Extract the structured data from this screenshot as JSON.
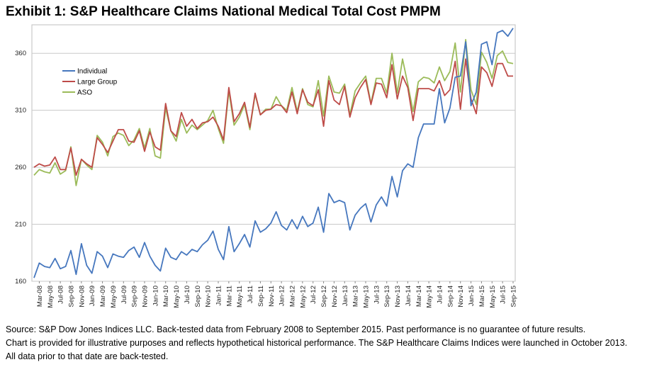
{
  "title": "Exhibit 1: S&P Healthcare Claims National Medical Total Cost PMPM",
  "footnotes": [
    "Source: S&P Dow Jones Indices LLC.  Back-tested data from February 2008 to September 2015.  Past performance is no guarantee of future results.",
    "Chart is provided for illustrative purposes and reflects hypothetical historical performance.  The S&P Healthcare Claims Indices were launched in October 2013.",
    "All data prior to that date are back-tested."
  ],
  "chart_data": {
    "type": "line",
    "title": "",
    "xlabel": "",
    "ylabel": "",
    "ylim": [
      160,
      385
    ],
    "yticks": [
      160,
      210,
      260,
      310,
      360
    ],
    "grid": "horizontal",
    "legend_position": "upper-left",
    "x_tick_labels": [
      "Mar-08",
      "May-08",
      "Jul-08",
      "Sep-08",
      "Nov-08",
      "Jan-09",
      "Mar-09",
      "May-09",
      "Jul-09",
      "Sep-09",
      "Nov-09",
      "Jan-10",
      "Mar-10",
      "May-10",
      "Jul-10",
      "Sep-10",
      "Nov-10",
      "Jan-11",
      "Mar-11",
      "May-11",
      "Jul-11",
      "Sep-11",
      "Nov-11",
      "Jan-12",
      "Mar-12",
      "May-12",
      "Jul-12",
      "Sep-12",
      "Nov-12",
      "Jan-13",
      "Mar-13",
      "May-13",
      "Jul-13",
      "Sep-13",
      "Nov-13",
      "Jan-14",
      "Mar-14",
      "May-14",
      "Jul-14",
      "Sep-14",
      "Nov-14",
      "Jan-15",
      "Mar-15",
      "May-15",
      "Jul-15",
      "Sep-15"
    ],
    "x": [
      "Feb-08",
      "Mar-08",
      "Apr-08",
      "May-08",
      "Jun-08",
      "Jul-08",
      "Aug-08",
      "Sep-08",
      "Oct-08",
      "Nov-08",
      "Dec-08",
      "Jan-09",
      "Feb-09",
      "Mar-09",
      "Apr-09",
      "May-09",
      "Jun-09",
      "Jul-09",
      "Aug-09",
      "Sep-09",
      "Oct-09",
      "Nov-09",
      "Dec-09",
      "Jan-10",
      "Feb-10",
      "Mar-10",
      "Apr-10",
      "May-10",
      "Jun-10",
      "Jul-10",
      "Aug-10",
      "Sep-10",
      "Oct-10",
      "Nov-10",
      "Dec-10",
      "Jan-11",
      "Feb-11",
      "Mar-11",
      "Apr-11",
      "May-11",
      "Jun-11",
      "Jul-11",
      "Aug-11",
      "Sep-11",
      "Oct-11",
      "Nov-11",
      "Dec-11",
      "Jan-12",
      "Feb-12",
      "Mar-12",
      "Apr-12",
      "May-12",
      "Jun-12",
      "Jul-12",
      "Aug-12",
      "Sep-12",
      "Oct-12",
      "Nov-12",
      "Dec-12",
      "Jan-13",
      "Feb-13",
      "Mar-13",
      "Apr-13",
      "May-13",
      "Jun-13",
      "Jul-13",
      "Aug-13",
      "Sep-13",
      "Oct-13",
      "Nov-13",
      "Dec-13",
      "Jan-14",
      "Feb-14",
      "Mar-14",
      "Apr-14",
      "May-14",
      "Jun-14",
      "Jul-14",
      "Aug-14",
      "Sep-14",
      "Oct-14",
      "Nov-14",
      "Dec-14",
      "Jan-15",
      "Feb-15",
      "Mar-15",
      "Apr-15",
      "May-15",
      "Jun-15",
      "Jul-15",
      "Aug-15",
      "Sep-15"
    ],
    "series": [
      {
        "name": "Individual",
        "color": "#4677BE",
        "values": [
          163,
          176,
          173,
          172,
          180,
          171,
          173,
          187,
          166,
          193,
          174,
          167,
          186,
          182,
          172,
          184,
          182,
          181,
          187,
          190,
          181,
          194,
          182,
          174,
          169,
          189,
          181,
          179,
          186,
          183,
          188,
          186,
          192,
          196,
          204,
          188,
          179,
          208,
          186,
          193,
          201,
          190,
          213,
          203,
          206,
          211,
          221,
          209,
          205,
          214,
          206,
          217,
          208,
          211,
          225,
          203,
          237,
          229,
          231,
          229,
          205,
          218,
          224,
          228,
          212,
          227,
          234,
          226,
          252,
          234,
          257,
          263,
          260,
          286,
          298,
          298,
          298,
          329,
          299,
          312,
          339,
          340,
          370,
          314,
          326,
          368,
          370,
          350,
          378,
          380,
          375,
          382
        ]
      },
      {
        "name": "Large Group",
        "color": "#BE4B48",
        "values": [
          260,
          263,
          261,
          262,
          269,
          258,
          258,
          277,
          253,
          267,
          263,
          260,
          286,
          280,
          273,
          283,
          293,
          293,
          283,
          282,
          292,
          274,
          291,
          278,
          275,
          316,
          292,
          287,
          308,
          296,
          302,
          294,
          299,
          300,
          304,
          296,
          284,
          330,
          300,
          307,
          317,
          295,
          325,
          306,
          310,
          311,
          315,
          314,
          308,
          326,
          307,
          328,
          317,
          314,
          328,
          296,
          336,
          319,
          315,
          331,
          304,
          321,
          330,
          337,
          315,
          334,
          333,
          321,
          350,
          320,
          340,
          330,
          301,
          329,
          329,
          329,
          327,
          336,
          323,
          328,
          353,
          311,
          355,
          320,
          307,
          348,
          343,
          331,
          351,
          351,
          340,
          340
        ]
      },
      {
        "name": "ASO",
        "color": "#9BBB59",
        "values": [
          253,
          258,
          256,
          255,
          264,
          254,
          257,
          278,
          244,
          267,
          262,
          258,
          288,
          282,
          270,
          287,
          290,
          288,
          279,
          284,
          294,
          277,
          294,
          270,
          268,
          312,
          292,
          283,
          302,
          290,
          297,
          293,
          297,
          301,
          310,
          294,
          281,
          327,
          297,
          304,
          315,
          293,
          324,
          306,
          311,
          311,
          322,
          314,
          310,
          330,
          309,
          329,
          315,
          313,
          336,
          305,
          340,
          326,
          325,
          333,
          306,
          327,
          334,
          340,
          316,
          338,
          338,
          325,
          360,
          325,
          355,
          333,
          309,
          335,
          339,
          338,
          334,
          348,
          336,
          344,
          369,
          326,
          372,
          328,
          315,
          361,
          352,
          338,
          358,
          362,
          352,
          351
        ]
      }
    ]
  }
}
